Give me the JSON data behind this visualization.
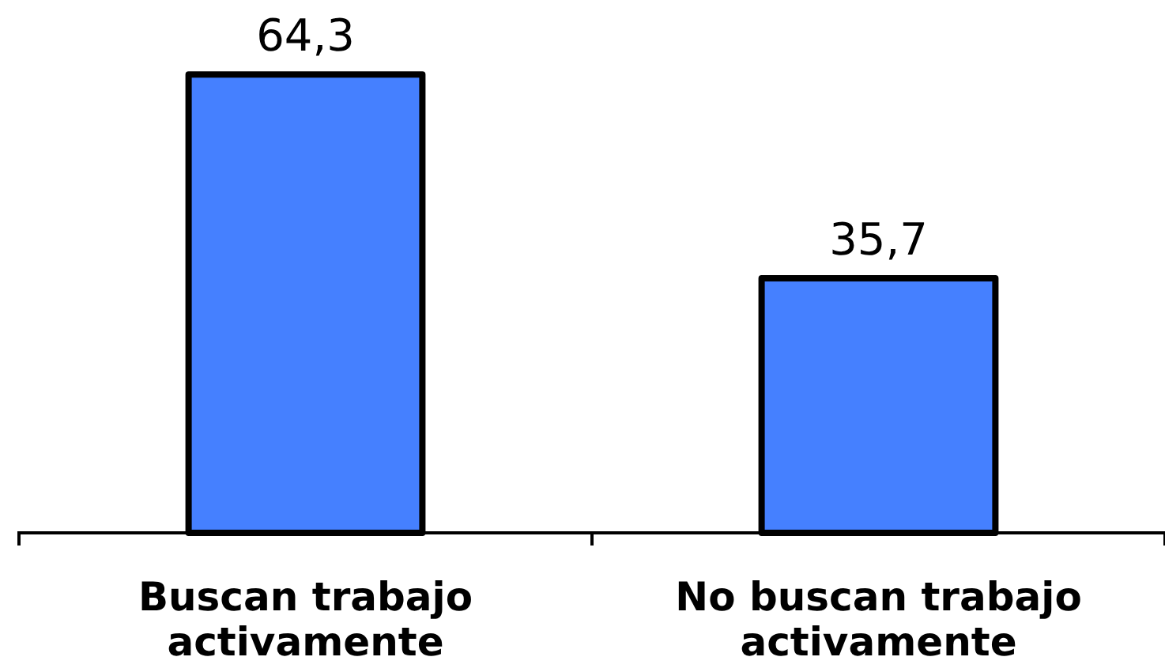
{
  "chart_data": {
    "type": "bar",
    "categories": [
      "Buscan trabajo activamente",
      "No buscan trabajo activamente"
    ],
    "values": [
      64.3,
      35.7
    ],
    "color": "#4580ff",
    "value_labels": [
      "64,3",
      "35,7"
    ],
    "tick_labels": "x"
  }
}
